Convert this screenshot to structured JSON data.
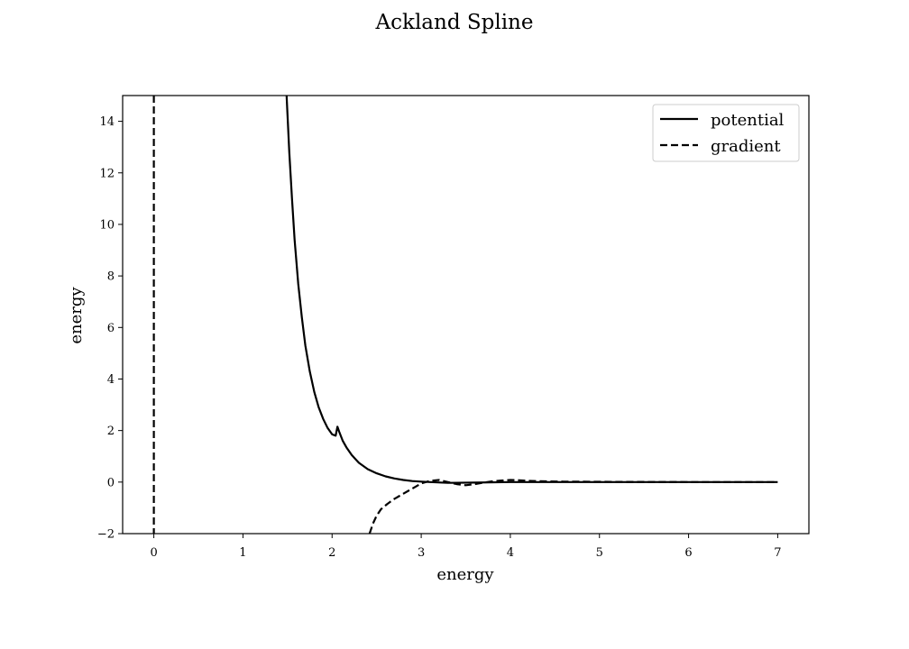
{
  "chart_data": {
    "type": "line",
    "title": "Ackland Spline",
    "xlabel": "energy",
    "ylabel": "energy",
    "xlim": [
      -0.35,
      7.35
    ],
    "ylim": [
      -2,
      15
    ],
    "xticks": [
      "0",
      "1",
      "2",
      "3",
      "4",
      "5",
      "6",
      "7"
    ],
    "yticks": [
      "−2",
      "0",
      "2",
      "4",
      "6",
      "8",
      "10",
      "12",
      "14"
    ],
    "grid": false,
    "legend_position": "top-right",
    "series": [
      {
        "name": "potential",
        "style": "solid",
        "color": "#000000",
        "x": [
          1.49,
          1.52,
          1.55,
          1.58,
          1.62,
          1.66,
          1.7,
          1.75,
          1.8,
          1.85,
          1.9,
          1.95,
          2.0,
          2.04,
          2.06,
          2.08,
          2.12,
          2.16,
          2.22,
          2.3,
          2.4,
          2.5,
          2.6,
          2.7,
          2.8,
          2.9,
          3.0,
          3.1,
          3.3,
          3.6,
          4.0,
          5.0,
          6.0,
          7.0
        ],
        "y": [
          15.0,
          12.8,
          11.0,
          9.4,
          7.7,
          6.4,
          5.3,
          4.3,
          3.5,
          2.9,
          2.45,
          2.1,
          1.85,
          1.8,
          2.15,
          1.95,
          1.6,
          1.35,
          1.05,
          0.75,
          0.5,
          0.34,
          0.22,
          0.14,
          0.08,
          0.04,
          0.02,
          0.0,
          -0.03,
          -0.02,
          0.0,
          0.0,
          0.0,
          0.0
        ]
      },
      {
        "name": "gradient",
        "style": "dashed",
        "color": "#000000",
        "segments": [
          {
            "x": [
              0.0,
              0.0
            ],
            "y": [
              15.0,
              -2.0
            ]
          },
          {
            "x": [
              2.42,
              2.46,
              2.5,
              2.55,
              2.62,
              2.7,
              2.8,
              2.9,
              3.0,
              3.1,
              3.2,
              3.3,
              3.4,
              3.5,
              3.6,
              3.7,
              3.8,
              3.9,
              4.0,
              4.1,
              4.2,
              4.4,
              4.6,
              5.0,
              6.0,
              7.0
            ],
            "y": [
              -2.0,
              -1.6,
              -1.3,
              -1.05,
              -0.85,
              -0.65,
              -0.45,
              -0.25,
              -0.05,
              0.05,
              0.08,
              0.0,
              -0.08,
              -0.12,
              -0.08,
              -0.02,
              0.03,
              0.06,
              0.08,
              0.07,
              0.05,
              0.03,
              0.02,
              0.01,
              0.0,
              0.0
            ]
          }
        ]
      }
    ]
  }
}
